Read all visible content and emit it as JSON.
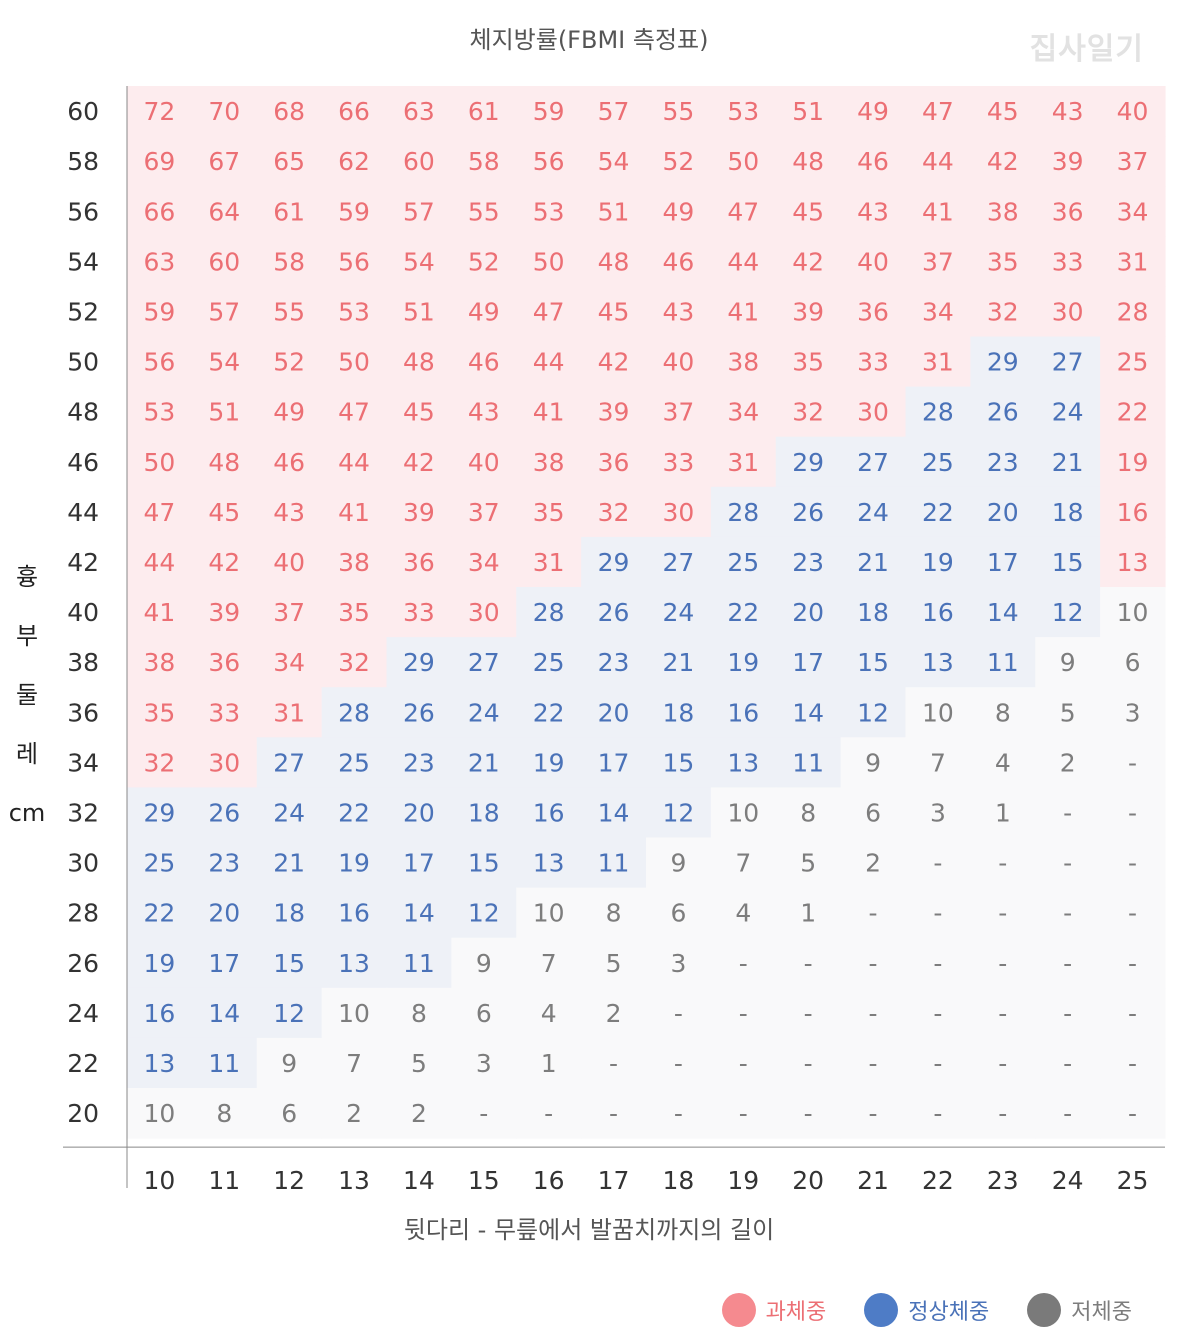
{
  "title": "체지방률(FBMI 측정표)",
  "watermark": "집사일기",
  "chart_data": {
    "type": "table",
    "title": "체지방률(FBMI 측정표)",
    "xlabel": "뒷다리 - 무릎에서 발꿈치까지의 길이",
    "ylabel_chars": [
      "흉",
      "부",
      "둘",
      "레",
      "cm"
    ],
    "x": [
      "10",
      "11",
      "12",
      "13",
      "14",
      "15",
      "16",
      "17",
      "18",
      "19",
      "20",
      "21",
      "22",
      "23",
      "24",
      "25"
    ],
    "y": [
      "60",
      "58",
      "56",
      "54",
      "52",
      "50",
      "48",
      "46",
      "44",
      "42",
      "40",
      "38",
      "36",
      "34",
      "32",
      "30",
      "28",
      "26",
      "24",
      "22",
      "20"
    ],
    "cells": [
      [
        "72",
        "70",
        "68",
        "66",
        "63",
        "61",
        "59",
        "57",
        "55",
        "53",
        "51",
        "49",
        "47",
        "45",
        "43",
        "40"
      ],
      [
        "69",
        "67",
        "65",
        "62",
        "60",
        "58",
        "56",
        "54",
        "52",
        "50",
        "48",
        "46",
        "44",
        "42",
        "39",
        "37"
      ],
      [
        "66",
        "64",
        "61",
        "59",
        "57",
        "55",
        "53",
        "51",
        "49",
        "47",
        "45",
        "43",
        "41",
        "38",
        "36",
        "34"
      ],
      [
        "63",
        "60",
        "58",
        "56",
        "54",
        "52",
        "50",
        "48",
        "46",
        "44",
        "42",
        "40",
        "37",
        "35",
        "33",
        "31"
      ],
      [
        "59",
        "57",
        "55",
        "53",
        "51",
        "49",
        "47",
        "45",
        "43",
        "41",
        "39",
        "36",
        "34",
        "32",
        "30",
        "28"
      ],
      [
        "56",
        "54",
        "52",
        "50",
        "48",
        "46",
        "44",
        "42",
        "40",
        "38",
        "35",
        "33",
        "31",
        "29",
        "27",
        "25"
      ],
      [
        "53",
        "51",
        "49",
        "47",
        "45",
        "43",
        "41",
        "39",
        "37",
        "34",
        "32",
        "30",
        "28",
        "26",
        "24",
        "22"
      ],
      [
        "50",
        "48",
        "46",
        "44",
        "42",
        "40",
        "38",
        "36",
        "33",
        "31",
        "29",
        "27",
        "25",
        "23",
        "21",
        "19"
      ],
      [
        "47",
        "45",
        "43",
        "41",
        "39",
        "37",
        "35",
        "32",
        "30",
        "28",
        "26",
        "24",
        "22",
        "20",
        "18",
        "16"
      ],
      [
        "44",
        "42",
        "40",
        "38",
        "36",
        "34",
        "31",
        "29",
        "27",
        "25",
        "23",
        "21",
        "19",
        "17",
        "15",
        "13"
      ],
      [
        "41",
        "39",
        "37",
        "35",
        "33",
        "30",
        "28",
        "26",
        "24",
        "22",
        "20",
        "18",
        "16",
        "14",
        "12",
        "10"
      ],
      [
        "38",
        "36",
        "34",
        "32",
        "29",
        "27",
        "25",
        "23",
        "21",
        "19",
        "17",
        "15",
        "13",
        "11",
        "9",
        "6"
      ],
      [
        "35",
        "33",
        "31",
        "28",
        "26",
        "24",
        "22",
        "20",
        "18",
        "16",
        "14",
        "12",
        "10",
        "8",
        "5",
        "3"
      ],
      [
        "32",
        "30",
        "27",
        "25",
        "23",
        "21",
        "19",
        "17",
        "15",
        "13",
        "11",
        "9",
        "7",
        "4",
        "2",
        "-"
      ],
      [
        "29",
        "26",
        "24",
        "22",
        "20",
        "18",
        "16",
        "14",
        "12",
        "10",
        "8",
        "6",
        "3",
        "1",
        "-",
        "-"
      ],
      [
        "25",
        "23",
        "21",
        "19",
        "17",
        "15",
        "13",
        "11",
        "9",
        "7",
        "5",
        "2",
        "-",
        "-",
        "-",
        "-"
      ],
      [
        "22",
        "20",
        "18",
        "16",
        "14",
        "12",
        "10",
        "8",
        "6",
        "4",
        "1",
        "-",
        "-",
        "-",
        "-",
        "-"
      ],
      [
        "19",
        "17",
        "15",
        "13",
        "11",
        "9",
        "7",
        "5",
        "3",
        "-",
        "-",
        "-",
        "-",
        "-",
        "-",
        "-"
      ],
      [
        "16",
        "14",
        "12",
        "10",
        "8",
        "6",
        "4",
        "2",
        "-",
        "-",
        "-",
        "-",
        "-",
        "-",
        "-",
        "-"
      ],
      [
        "13",
        "11",
        "9",
        "7",
        "5",
        "3",
        "1",
        "-",
        "-",
        "-",
        "-",
        "-",
        "-",
        "-",
        "-",
        "-"
      ],
      [
        "10",
        "8",
        "6",
        "2",
        "2",
        "-",
        "-",
        "-",
        "-",
        "-",
        "-",
        "-",
        "-",
        "-",
        "-",
        "-"
      ]
    ],
    "categories": [
      [
        "o",
        "o",
        "o",
        "o",
        "o",
        "o",
        "o",
        "o",
        "o",
        "o",
        "o",
        "o",
        "o",
        "o",
        "o",
        "o"
      ],
      [
        "o",
        "o",
        "o",
        "o",
        "o",
        "o",
        "o",
        "o",
        "o",
        "o",
        "o",
        "o",
        "o",
        "o",
        "o",
        "o"
      ],
      [
        "o",
        "o",
        "o",
        "o",
        "o",
        "o",
        "o",
        "o",
        "o",
        "o",
        "o",
        "o",
        "o",
        "o",
        "o",
        "o"
      ],
      [
        "o",
        "o",
        "o",
        "o",
        "o",
        "o",
        "o",
        "o",
        "o",
        "o",
        "o",
        "o",
        "o",
        "o",
        "o",
        "o"
      ],
      [
        "o",
        "o",
        "o",
        "o",
        "o",
        "o",
        "o",
        "o",
        "o",
        "o",
        "o",
        "o",
        "o",
        "o",
        "o",
        "o"
      ],
      [
        "o",
        "o",
        "o",
        "o",
        "o",
        "o",
        "o",
        "o",
        "o",
        "o",
        "o",
        "o",
        "o",
        "n",
        "n",
        "o"
      ],
      [
        "o",
        "o",
        "o",
        "o",
        "o",
        "o",
        "o",
        "o",
        "o",
        "o",
        "o",
        "o",
        "n",
        "n",
        "n",
        "o"
      ],
      [
        "o",
        "o",
        "o",
        "o",
        "o",
        "o",
        "o",
        "o",
        "o",
        "o",
        "n",
        "n",
        "n",
        "n",
        "n",
        "o"
      ],
      [
        "o",
        "o",
        "o",
        "o",
        "o",
        "o",
        "o",
        "o",
        "o",
        "n",
        "n",
        "n",
        "n",
        "n",
        "n",
        "o"
      ],
      [
        "o",
        "o",
        "o",
        "o",
        "o",
        "o",
        "o",
        "n",
        "n",
        "n",
        "n",
        "n",
        "n",
        "n",
        "n",
        "o"
      ],
      [
        "o",
        "o",
        "o",
        "o",
        "o",
        "o",
        "n",
        "n",
        "n",
        "n",
        "n",
        "n",
        "n",
        "n",
        "n",
        "u"
      ],
      [
        "o",
        "o",
        "o",
        "o",
        "n",
        "n",
        "n",
        "n",
        "n",
        "n",
        "n",
        "n",
        "n",
        "n",
        "u",
        "u"
      ],
      [
        "o",
        "o",
        "o",
        "n",
        "n",
        "n",
        "n",
        "n",
        "n",
        "n",
        "n",
        "n",
        "u",
        "u",
        "u",
        "u"
      ],
      [
        "o",
        "o",
        "n",
        "n",
        "n",
        "n",
        "n",
        "n",
        "n",
        "n",
        "n",
        "u",
        "u",
        "u",
        "u",
        "u"
      ],
      [
        "n",
        "n",
        "n",
        "n",
        "n",
        "n",
        "n",
        "n",
        "n",
        "u",
        "u",
        "u",
        "u",
        "u",
        "u",
        "u"
      ],
      [
        "n",
        "n",
        "n",
        "n",
        "n",
        "n",
        "n",
        "n",
        "u",
        "u",
        "u",
        "u",
        "u",
        "u",
        "u",
        "u"
      ],
      [
        "n",
        "n",
        "n",
        "n",
        "n",
        "n",
        "u",
        "u",
        "u",
        "u",
        "u",
        "u",
        "u",
        "u",
        "u",
        "u"
      ],
      [
        "n",
        "n",
        "n",
        "n",
        "n",
        "u",
        "u",
        "u",
        "u",
        "u",
        "u",
        "u",
        "u",
        "u",
        "u",
        "u"
      ],
      [
        "n",
        "n",
        "n",
        "u",
        "u",
        "u",
        "u",
        "u",
        "u",
        "u",
        "u",
        "u",
        "u",
        "u",
        "u",
        "u"
      ],
      [
        "n",
        "n",
        "u",
        "u",
        "u",
        "u",
        "u",
        "u",
        "u",
        "u",
        "u",
        "u",
        "u",
        "u",
        "u",
        "u"
      ],
      [
        "u",
        "u",
        "u",
        "u",
        "u",
        "u",
        "u",
        "u",
        "u",
        "u",
        "u",
        "u",
        "u",
        "u",
        "u",
        "u"
      ]
    ],
    "legend": [
      {
        "key": "o",
        "label": "과체중",
        "color": "#f58a8f"
      },
      {
        "key": "n",
        "label": "정상체중",
        "color": "#4e7cc6"
      },
      {
        "key": "u",
        "label": "저체중",
        "color": "#7a7a7a"
      }
    ],
    "legend_position": "bottom-right",
    "colors": {
      "over_text": "#ec6f74",
      "normal_text": "#4a72b8",
      "under_text": "#7d7d7d",
      "over_bg": "#fdecee",
      "normal_bg": "#eef1f7",
      "under_bg": "#f9f9fa",
      "axis_line": "#888888",
      "axis_text": "#333333"
    }
  }
}
